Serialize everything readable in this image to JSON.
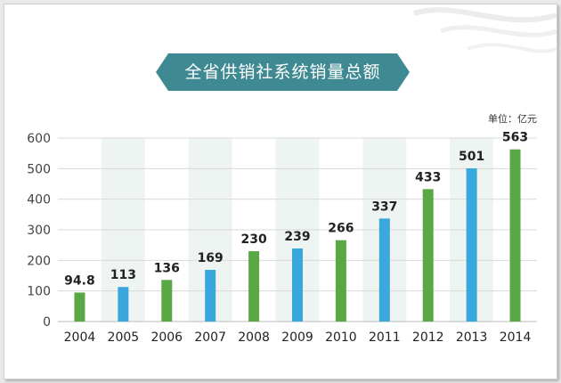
{
  "title": "全省供销社系统销量总额",
  "unit_label": "单位：亿元",
  "colors": {
    "banner": "#3f8a92",
    "green": "#5aa845",
    "blue": "#3aa8dd",
    "band": "#eef4f1",
    "grid": "#d9d9d9"
  },
  "chart_data": {
    "type": "bar",
    "categories": [
      "2004",
      "2005",
      "2006",
      "2007",
      "2008",
      "2009",
      "2010",
      "2011",
      "2012",
      "2013",
      "2014"
    ],
    "values": [
      94.8,
      113,
      136,
      169,
      230,
      239,
      266,
      337,
      433,
      501,
      563
    ],
    "value_labels": [
      "94.8",
      "113",
      "136",
      "169",
      "230",
      "239",
      "266",
      "337",
      "433",
      "501",
      "563"
    ],
    "bar_colors": [
      "green",
      "blue",
      "green",
      "blue",
      "green",
      "blue",
      "green",
      "blue",
      "green",
      "blue",
      "green"
    ],
    "yticks": [
      0,
      100,
      200,
      300,
      400,
      500,
      600
    ],
    "ylim": [
      0,
      600
    ],
    "shaded_categories": [
      "2005",
      "2007",
      "2009",
      "2011",
      "2013"
    ],
    "grid": true
  }
}
